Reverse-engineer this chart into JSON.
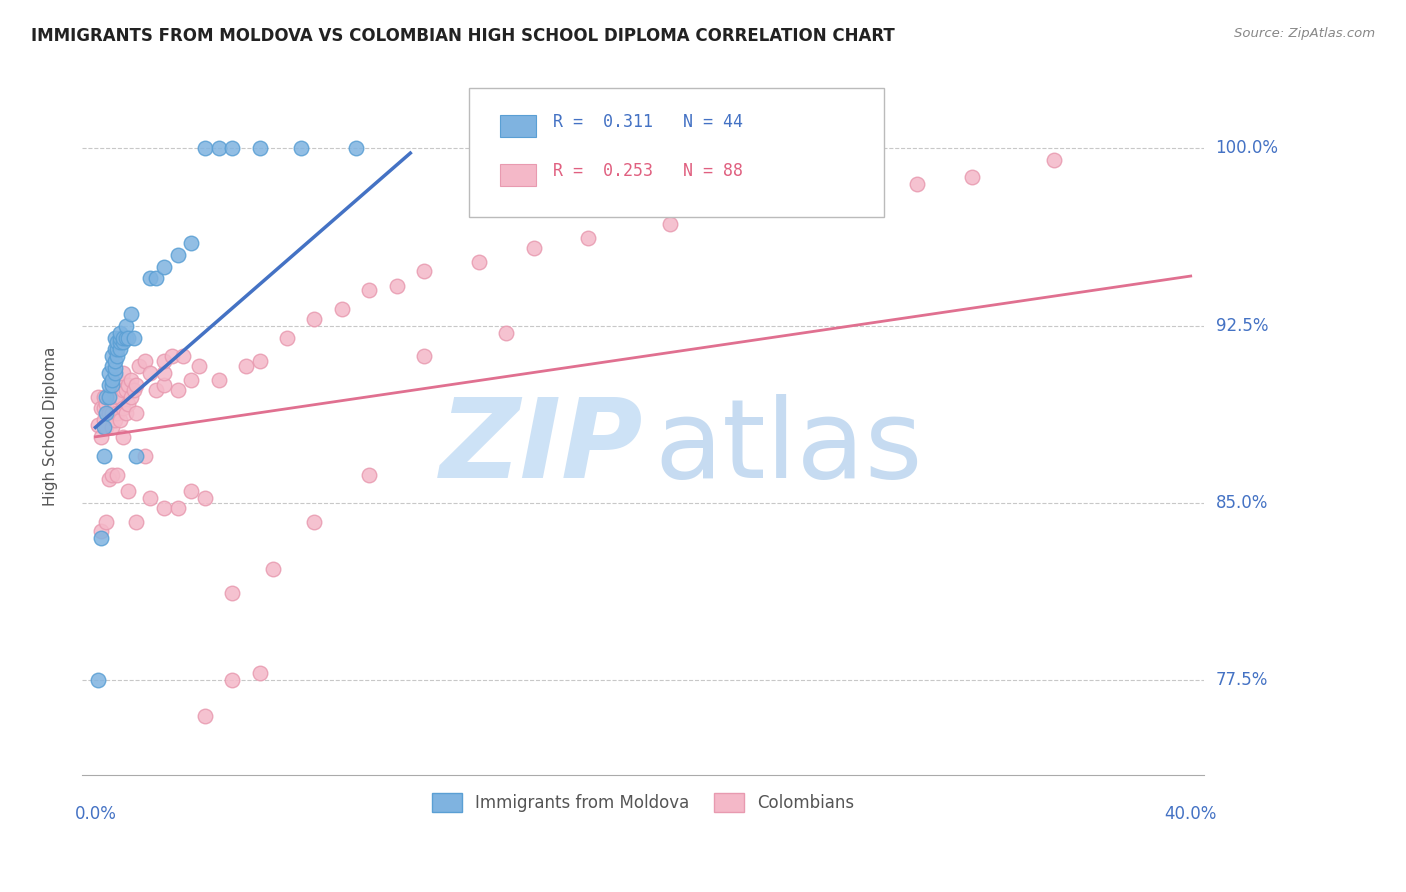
{
  "title": "IMMIGRANTS FROM MOLDOVA VS COLOMBIAN HIGH SCHOOL DIPLOMA CORRELATION CHART",
  "source": "Source: ZipAtlas.com",
  "ylabel": "High School Diploma",
  "yticks": [
    0.775,
    0.85,
    0.925,
    1.0
  ],
  "ytick_labels": [
    "77.5%",
    "85.0%",
    "92.5%",
    "100.0%"
  ],
  "blue_color": "#7fb3e0",
  "pink_color": "#f4b8c8",
  "blue_scatter_edge": "#5a9fd4",
  "pink_scatter_edge": "#e89ab0",
  "blue_line_color": "#4472c4",
  "pink_line_color": "#e07090",
  "blue_scatter_x": [
    0.001,
    0.002,
    0.003,
    0.003,
    0.004,
    0.004,
    0.005,
    0.005,
    0.005,
    0.006,
    0.006,
    0.006,
    0.006,
    0.007,
    0.007,
    0.007,
    0.007,
    0.007,
    0.008,
    0.008,
    0.008,
    0.009,
    0.009,
    0.009,
    0.009,
    0.01,
    0.01,
    0.011,
    0.011,
    0.012,
    0.013,
    0.014,
    0.015,
    0.02,
    0.022,
    0.025,
    0.03,
    0.035,
    0.04,
    0.045,
    0.05,
    0.06,
    0.075,
    0.095
  ],
  "blue_scatter_y": [
    0.775,
    0.835,
    0.87,
    0.882,
    0.888,
    0.895,
    0.895,
    0.9,
    0.905,
    0.9,
    0.902,
    0.908,
    0.912,
    0.905,
    0.907,
    0.91,
    0.915,
    0.92,
    0.912,
    0.915,
    0.918,
    0.915,
    0.918,
    0.92,
    0.922,
    0.918,
    0.92,
    0.92,
    0.925,
    0.92,
    0.93,
    0.92,
    0.87,
    0.945,
    0.945,
    0.95,
    0.955,
    0.96,
    1.0,
    1.0,
    1.0,
    1.0,
    1.0,
    1.0
  ],
  "pink_scatter_x": [
    0.001,
    0.001,
    0.002,
    0.002,
    0.003,
    0.003,
    0.003,
    0.004,
    0.004,
    0.005,
    0.005,
    0.006,
    0.006,
    0.006,
    0.007,
    0.007,
    0.007,
    0.008,
    0.008,
    0.008,
    0.009,
    0.009,
    0.01,
    0.01,
    0.01,
    0.011,
    0.011,
    0.012,
    0.012,
    0.013,
    0.013,
    0.014,
    0.015,
    0.015,
    0.016,
    0.018,
    0.02,
    0.022,
    0.025,
    0.025,
    0.025,
    0.028,
    0.03,
    0.032,
    0.035,
    0.038,
    0.04,
    0.045,
    0.05,
    0.055,
    0.06,
    0.065,
    0.07,
    0.08,
    0.09,
    0.1,
    0.11,
    0.12,
    0.14,
    0.16,
    0.18,
    0.21,
    0.24,
    0.27,
    0.3,
    0.32,
    0.35,
    0.002,
    0.004,
    0.005,
    0.006,
    0.008,
    0.01,
    0.012,
    0.015,
    0.018,
    0.02,
    0.025,
    0.03,
    0.035,
    0.04,
    0.05,
    0.06,
    0.08,
    0.1,
    0.12,
    0.15
  ],
  "pink_scatter_y": [
    0.883,
    0.895,
    0.878,
    0.89,
    0.885,
    0.89,
    0.895,
    0.882,
    0.892,
    0.888,
    0.895,
    0.882,
    0.888,
    0.898,
    0.885,
    0.892,
    0.9,
    0.888,
    0.895,
    0.902,
    0.885,
    0.895,
    0.89,
    0.898,
    0.905,
    0.888,
    0.898,
    0.892,
    0.9,
    0.895,
    0.902,
    0.898,
    0.888,
    0.9,
    0.908,
    0.91,
    0.905,
    0.898,
    0.9,
    0.905,
    0.91,
    0.912,
    0.898,
    0.912,
    0.902,
    0.908,
    0.852,
    0.902,
    0.812,
    0.908,
    0.91,
    0.822,
    0.92,
    0.928,
    0.932,
    0.94,
    0.942,
    0.948,
    0.952,
    0.958,
    0.962,
    0.968,
    0.975,
    0.982,
    0.985,
    0.988,
    0.995,
    0.838,
    0.842,
    0.86,
    0.862,
    0.862,
    0.878,
    0.855,
    0.842,
    0.87,
    0.852,
    0.848,
    0.848,
    0.855,
    0.76,
    0.775,
    0.778,
    0.842,
    0.862,
    0.912,
    0.922
  ],
  "blue_line_x": [
    0.0,
    0.115
  ],
  "blue_line_y": [
    0.882,
    0.998
  ],
  "pink_line_x": [
    0.0,
    0.4
  ],
  "pink_line_y": [
    0.878,
    0.946
  ],
  "xlim": [
    -0.005,
    0.405
  ],
  "ylim": [
    0.735,
    1.03
  ],
  "legend_label_blue": "Immigrants from Moldova",
  "legend_label_pink": "Colombians",
  "watermark_zip_color": "#c8dff5",
  "watermark_atlas_color": "#c0d8f0"
}
